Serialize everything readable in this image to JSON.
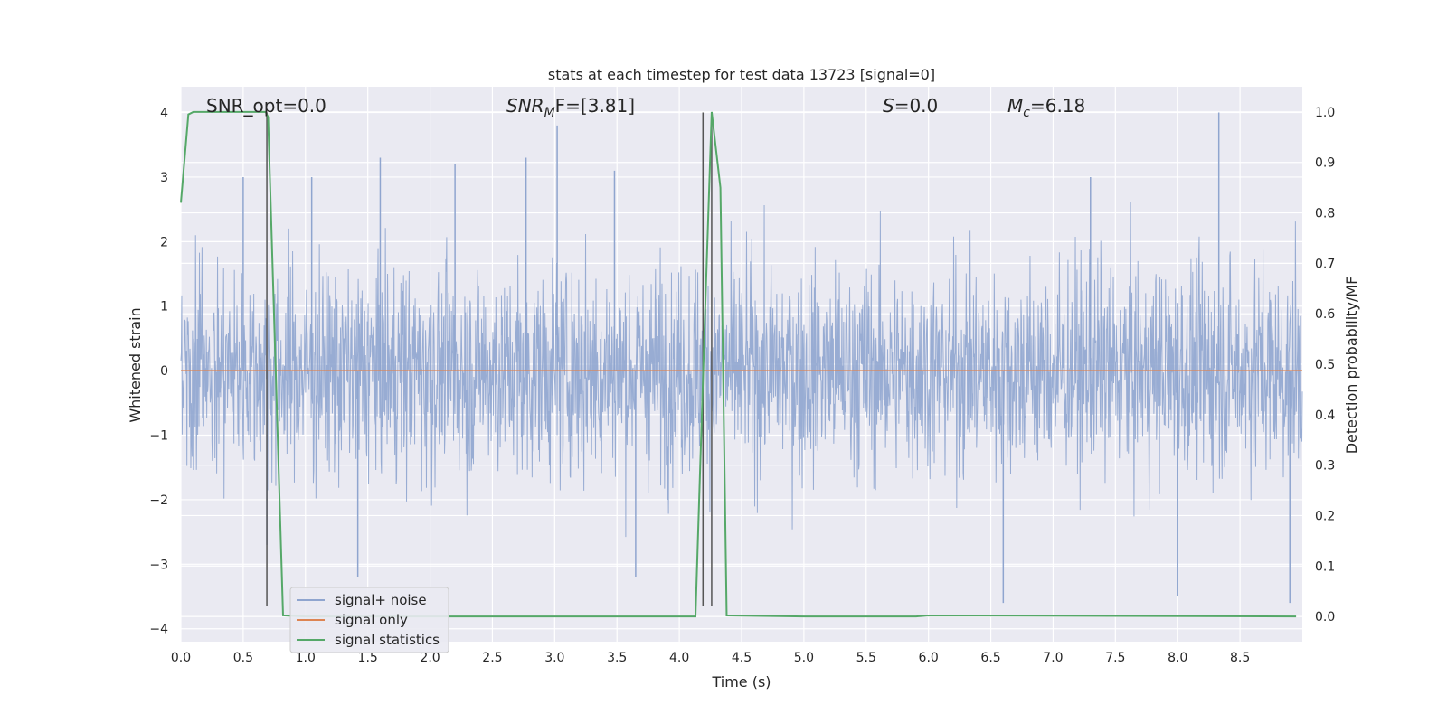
{
  "chart_data": {
    "type": "line",
    "title": "stats at each timestep for test data 13723 [signal=0]",
    "xlabel": "Time (s)",
    "ylabel": "Whitened strain",
    "y2label": "Detection probability/MF",
    "xlim": [
      0.0,
      9.0
    ],
    "ylim": [
      -4.2,
      4.4
    ],
    "y2lim": [
      -0.05,
      1.05
    ],
    "xticks": [
      "0.0",
      "0.5",
      "1.0",
      "1.5",
      "2.0",
      "2.5",
      "3.0",
      "3.5",
      "4.0",
      "4.5",
      "5.0",
      "5.5",
      "6.0",
      "6.5",
      "7.0",
      "7.5",
      "8.0",
      "8.5"
    ],
    "yticks": [
      "4",
      "3",
      "2",
      "1",
      "0",
      "−1",
      "−2",
      "−3",
      "−4"
    ],
    "y2ticks": [
      "1.0",
      "0.9",
      "0.8",
      "0.7",
      "0.6",
      "0.5",
      "0.4",
      "0.3",
      "0.2",
      "0.1",
      "0.0"
    ],
    "grid": true,
    "legend_position": "lower-left",
    "annotations": {
      "snr_opt": "SNR_opt=0.0",
      "snr_mf_main": "SNR",
      "snr_mf_sub": "M",
      "snr_mf_tail": "F=[3.81]",
      "s_main": "S",
      "s_tail": "=0.0",
      "mc_main": "M",
      "mc_sub": "c",
      "mc_tail": "=6.18"
    },
    "series": [
      {
        "name": "signal+ noise",
        "color": "#8fa5cf",
        "description_values": "whitened strain noise, approx. within [-4, 4]",
        "noise_peaks": [
          [
            0.5,
            3.0
          ],
          [
            0.69,
            -2.7
          ],
          [
            1.05,
            3.0
          ],
          [
            1.42,
            -3.2
          ],
          [
            1.6,
            3.3
          ],
          [
            2.2,
            3.2
          ],
          [
            2.77,
            3.3
          ],
          [
            3.02,
            3.8
          ],
          [
            3.65,
            -3.2
          ],
          [
            3.48,
            3.1
          ],
          [
            6.6,
            -3.6
          ],
          [
            8.33,
            4.0
          ],
          [
            8.0,
            -3.5
          ],
          [
            8.9,
            -3.6
          ],
          [
            7.3,
            3.0
          ]
        ]
      },
      {
        "name": "signal only",
        "color": "#dd8452",
        "x": [
          0.0,
          9.0
        ],
        "y": [
          0.0,
          0.0
        ]
      },
      {
        "name": "signal statistics",
        "color": "#55a868",
        "axis": "right",
        "x": [
          0.0,
          0.06,
          0.1,
          0.2,
          0.3,
          0.5,
          0.68,
          0.7,
          0.82,
          1.0,
          4.0,
          4.13,
          4.2,
          4.26,
          4.33,
          4.38,
          5.0,
          5.9,
          6.0,
          8.95
        ],
        "y": [
          0.82,
          0.995,
          1.0,
          1.0,
          1.0,
          1.0,
          1.0,
          0.99,
          0.002,
          0.0,
          0.0,
          0.0,
          0.55,
          1.0,
          0.85,
          0.002,
          0.0,
          0.0,
          0.002,
          0.0
        ]
      }
    ],
    "vertical_lines": [
      {
        "x": 0.69,
        "y_top": 4.0,
        "y_bottom": -3.65,
        "color": "#555555"
      },
      {
        "x": 4.19,
        "y_top": 4.0,
        "y_bottom": -3.65,
        "color": "#555555"
      },
      {
        "x": 4.26,
        "y_top": 4.0,
        "y_bottom": -3.65,
        "color": "#555555"
      }
    ]
  }
}
